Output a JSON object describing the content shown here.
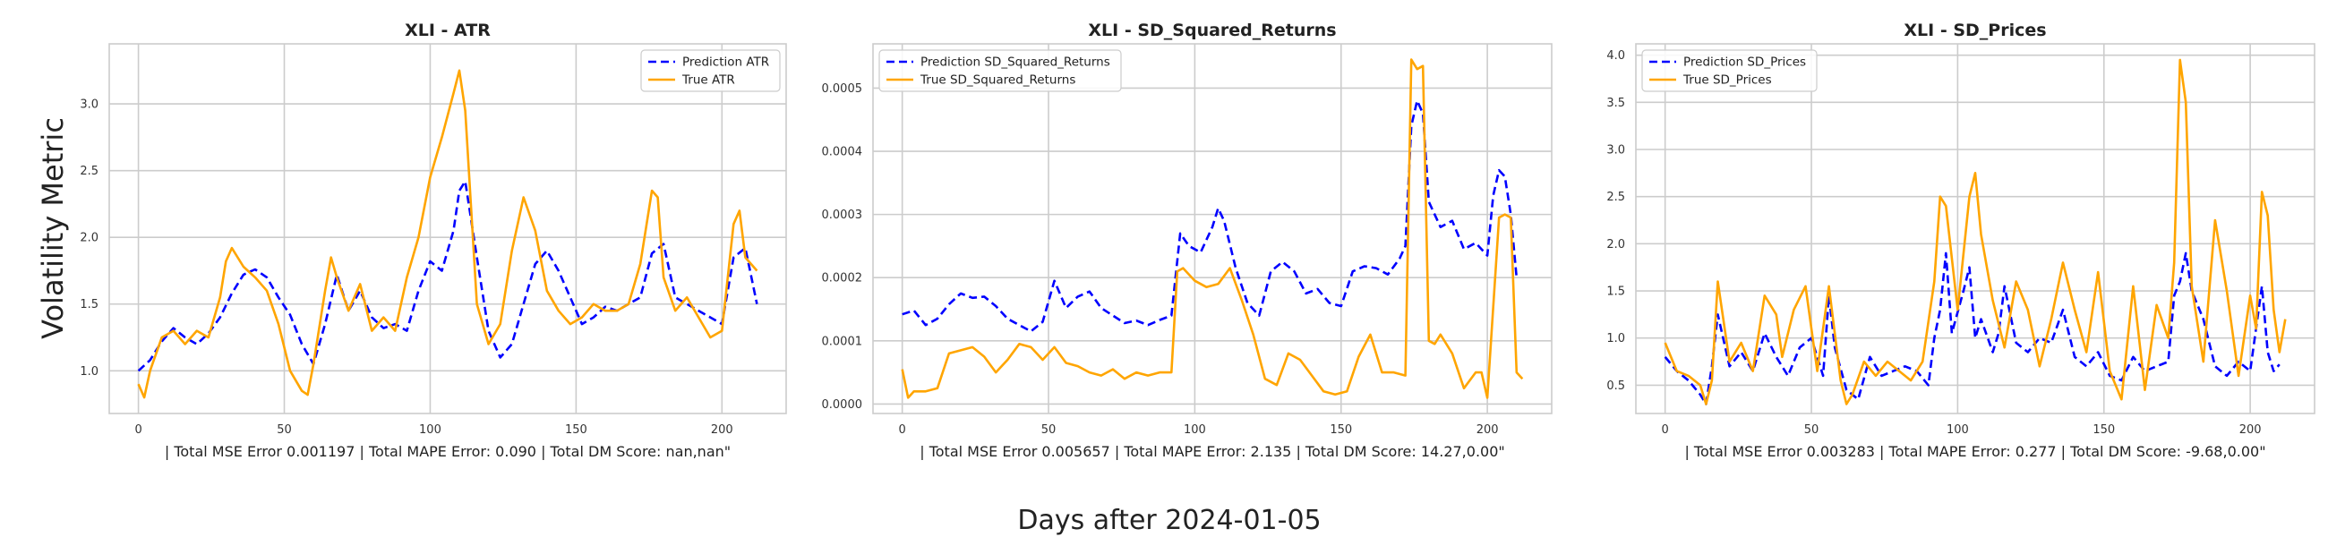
{
  "figure": {
    "ylabel": "Volatility Metric",
    "xlabel": "Days after 2024-01-05"
  },
  "chart_data": [
    {
      "type": "line",
      "title": "XLI - ATR",
      "xlabel": "| Total MSE Error 0.001197 | Total MAPE Error: 0.090 | Total DM Score: nan,nan\"",
      "xlim": [
        -10,
        222
      ],
      "ylim": [
        0.68,
        3.45
      ],
      "xticks": [
        0,
        50,
        100,
        150,
        200
      ],
      "yticks": [
        1.0,
        1.5,
        2.0,
        2.5,
        3.0
      ],
      "ytick_labels": [
        "1.0",
        "1.5",
        "2.0",
        "2.5",
        "3.0"
      ],
      "grid": true,
      "legend_position": "top-right",
      "series": [
        {
          "name": "Prediction ATR",
          "color": "#0000ff",
          "style": "dashed",
          "x": [
            0,
            4,
            8,
            12,
            16,
            20,
            24,
            28,
            32,
            36,
            40,
            44,
            48,
            52,
            56,
            60,
            64,
            68,
            72,
            76,
            80,
            84,
            88,
            92,
            96,
            100,
            104,
            108,
            110,
            112,
            116,
            120,
            124,
            128,
            132,
            136,
            140,
            144,
            148,
            152,
            156,
            160,
            164,
            168,
            172,
            176,
            180,
            184,
            188,
            192,
            196,
            200,
            204,
            208,
            212
          ],
          "y": [
            1.0,
            1.08,
            1.22,
            1.32,
            1.25,
            1.2,
            1.28,
            1.4,
            1.58,
            1.72,
            1.76,
            1.7,
            1.55,
            1.42,
            1.2,
            1.05,
            1.35,
            1.72,
            1.45,
            1.6,
            1.4,
            1.32,
            1.35,
            1.3,
            1.6,
            1.82,
            1.75,
            2.05,
            2.35,
            2.42,
            1.85,
            1.3,
            1.1,
            1.2,
            1.5,
            1.8,
            1.9,
            1.75,
            1.55,
            1.35,
            1.4,
            1.48,
            1.45,
            1.5,
            1.55,
            1.88,
            1.95,
            1.55,
            1.5,
            1.45,
            1.4,
            1.35,
            1.85,
            1.92,
            1.5
          ]
        },
        {
          "name": "True ATR",
          "color": "#ffa500",
          "style": "solid",
          "x": [
            0,
            2,
            4,
            8,
            12,
            16,
            20,
            24,
            28,
            30,
            32,
            36,
            40,
            44,
            48,
            52,
            56,
            58,
            60,
            64,
            66,
            68,
            72,
            76,
            80,
            84,
            88,
            92,
            96,
            100,
            104,
            108,
            110,
            112,
            116,
            120,
            124,
            128,
            132,
            136,
            140,
            144,
            148,
            152,
            156,
            160,
            164,
            168,
            172,
            176,
            178,
            180,
            184,
            188,
            192,
            196,
            200,
            204,
            206,
            208,
            212
          ],
          "y": [
            0.9,
            0.8,
            1.0,
            1.25,
            1.3,
            1.2,
            1.3,
            1.25,
            1.55,
            1.82,
            1.92,
            1.78,
            1.7,
            1.6,
            1.35,
            1.0,
            0.85,
            0.82,
            1.05,
            1.6,
            1.85,
            1.7,
            1.45,
            1.65,
            1.3,
            1.4,
            1.3,
            1.7,
            2.0,
            2.45,
            2.75,
            3.08,
            3.25,
            2.95,
            1.5,
            1.2,
            1.35,
            1.9,
            2.3,
            2.05,
            1.6,
            1.45,
            1.35,
            1.4,
            1.5,
            1.45,
            1.45,
            1.5,
            1.8,
            2.35,
            2.3,
            1.7,
            1.45,
            1.55,
            1.4,
            1.25,
            1.3,
            2.1,
            2.2,
            1.85,
            1.75
          ]
        }
      ]
    },
    {
      "type": "line",
      "title": "XLI - SD_Squared_Returns",
      "xlabel": "| Total MSE Error 0.005657 | Total MAPE Error: 2.135 | Total DM Score: 14.27,0.00\"",
      "xlim": [
        -10,
        222
      ],
      "ylim": [
        -1.5e-05,
        0.00057
      ],
      "xticks": [
        0,
        50,
        100,
        150,
        200
      ],
      "yticks": [
        0.0,
        0.0001,
        0.0002,
        0.0003,
        0.0004,
        0.0005
      ],
      "ytick_labels": [
        "0.0000",
        "0.0001",
        "0.0002",
        "0.0003",
        "0.0004",
        "0.0005"
      ],
      "grid": true,
      "legend_position": "top-left",
      "series": [
        {
          "name": "Prediction SD_Squared_Returns",
          "color": "#0000ff",
          "style": "dashed",
          "x": [
            0,
            4,
            8,
            12,
            16,
            20,
            24,
            28,
            32,
            36,
            40,
            44,
            48,
            52,
            56,
            60,
            64,
            68,
            72,
            76,
            80,
            84,
            88,
            92,
            95,
            98,
            102,
            106,
            108,
            110,
            114,
            118,
            122,
            126,
            130,
            134,
            138,
            142,
            146,
            150,
            154,
            158,
            162,
            166,
            170,
            172,
            174,
            176,
            178,
            180,
            184,
            188,
            192,
            196,
            200,
            202,
            204,
            206,
            208,
            210
          ],
          "y": [
            0.000142,
            0.000148,
            0.000125,
            0.000135,
            0.000158,
            0.000175,
            0.000168,
            0.00017,
            0.000155,
            0.000135,
            0.000125,
            0.000115,
            0.00013,
            0.000195,
            0.000152,
            0.00017,
            0.000178,
            0.000152,
            0.00014,
            0.000128,
            0.000132,
            0.000125,
            0.000133,
            0.00014,
            0.00027,
            0.00025,
            0.00024,
            0.00028,
            0.00031,
            0.00029,
            0.000215,
            0.00016,
            0.00014,
            0.00021,
            0.000225,
            0.00021,
            0.000175,
            0.000182,
            0.00016,
            0.000155,
            0.00021,
            0.000218,
            0.000215,
            0.000205,
            0.00023,
            0.00025,
            0.00044,
            0.00048,
            0.00046,
            0.00032,
            0.00028,
            0.00029,
            0.000245,
            0.000255,
            0.000235,
            0.00033,
            0.00037,
            0.00036,
            0.0003,
            0.0002
          ]
        },
        {
          "name": "True SD_Squared_Returns",
          "color": "#ffa500",
          "style": "solid",
          "x": [
            0,
            2,
            4,
            8,
            12,
            16,
            20,
            24,
            28,
            32,
            36,
            40,
            44,
            48,
            52,
            56,
            60,
            64,
            68,
            72,
            76,
            80,
            84,
            88,
            92,
            94,
            96,
            100,
            104,
            108,
            112,
            116,
            120,
            124,
            128,
            132,
            136,
            140,
            144,
            148,
            152,
            156,
            160,
            164,
            168,
            172,
            174,
            176,
            178,
            180,
            182,
            184,
            188,
            192,
            196,
            198,
            200,
            204,
            206,
            208,
            210,
            212
          ],
          "y": [
            5.5e-05,
            1e-05,
            2e-05,
            2e-05,
            2.5e-05,
            8e-05,
            8.5e-05,
            9e-05,
            7.5e-05,
            5e-05,
            7e-05,
            9.5e-05,
            9e-05,
            7e-05,
            9e-05,
            6.5e-05,
            6e-05,
            5e-05,
            4.5e-05,
            5.5e-05,
            4e-05,
            5e-05,
            4.5e-05,
            5e-05,
            5e-05,
            0.00021,
            0.000215,
            0.000195,
            0.000185,
            0.00019,
            0.000215,
            0.000165,
            0.00011,
            4e-05,
            3e-05,
            8e-05,
            7e-05,
            4.5e-05,
            2e-05,
            1.5e-05,
            2e-05,
            7.5e-05,
            0.00011,
            5e-05,
            5e-05,
            4.5e-05,
            0.000545,
            0.00053,
            0.000535,
            0.0001,
            9.5e-05,
            0.00011,
            8e-05,
            2.5e-05,
            5e-05,
            5e-05,
            1e-05,
            0.000295,
            0.0003,
            0.000295,
            5e-05,
            4e-05
          ]
        }
      ]
    },
    {
      "type": "line",
      "title": "XLI - SD_Prices",
      "xlabel": "| Total MSE Error 0.003283 | Total MAPE Error: 0.277 | Total DM Score: -9.68,0.00\"",
      "xlim": [
        -10,
        222
      ],
      "ylim": [
        0.2,
        4.12
      ],
      "xticks": [
        0,
        50,
        100,
        150,
        200
      ],
      "yticks": [
        0.5,
        1.0,
        1.5,
        2.0,
        2.5,
        3.0,
        3.5,
        4.0
      ],
      "ytick_labels": [
        "0.5",
        "1.0",
        "1.5",
        "2.0",
        "2.5",
        "3.0",
        "3.5",
        "4.0"
      ],
      "grid": true,
      "legend_position": "top-left",
      "series": [
        {
          "name": "Prediction SD_Prices",
          "color": "#0000ff",
          "style": "dashed",
          "x": [
            0,
            4,
            8,
            12,
            14,
            16,
            18,
            22,
            26,
            30,
            34,
            38,
            42,
            46,
            50,
            54,
            56,
            58,
            62,
            66,
            70,
            74,
            78,
            82,
            86,
            90,
            92,
            94,
            96,
            98,
            102,
            104,
            106,
            108,
            112,
            114,
            116,
            120,
            124,
            128,
            132,
            136,
            140,
            144,
            148,
            152,
            156,
            160,
            164,
            168,
            172,
            174,
            176,
            178,
            180,
            184,
            188,
            192,
            196,
            200,
            204,
            206,
            208,
            210
          ],
          "y": [
            0.8,
            0.65,
            0.55,
            0.4,
            0.3,
            0.7,
            1.25,
            0.7,
            0.85,
            0.65,
            1.05,
            0.8,
            0.6,
            0.9,
            1.0,
            0.6,
            1.45,
            0.9,
            0.45,
            0.35,
            0.8,
            0.6,
            0.65,
            0.7,
            0.65,
            0.5,
            1.0,
            1.3,
            1.9,
            1.05,
            1.5,
            1.75,
            1.0,
            1.2,
            0.85,
            1.05,
            1.55,
            0.95,
            0.85,
            1.0,
            0.95,
            1.3,
            0.8,
            0.7,
            0.85,
            0.6,
            0.55,
            0.8,
            0.65,
            0.7,
            0.75,
            1.45,
            1.6,
            1.9,
            1.5,
            1.2,
            0.7,
            0.6,
            0.75,
            0.65,
            1.55,
            0.85,
            0.65,
            0.72
          ]
        },
        {
          "name": "True SD_Prices",
          "color": "#ffa500",
          "style": "solid",
          "x": [
            0,
            4,
            8,
            12,
            14,
            16,
            18,
            22,
            26,
            30,
            34,
            38,
            40,
            44,
            48,
            52,
            56,
            60,
            62,
            64,
            68,
            72,
            76,
            80,
            84,
            88,
            92,
            94,
            96,
            100,
            104,
            106,
            108,
            112,
            116,
            120,
            124,
            128,
            132,
            136,
            140,
            144,
            148,
            152,
            156,
            160,
            164,
            168,
            172,
            174,
            176,
            178,
            180,
            184,
            188,
            192,
            196,
            200,
            202,
            204,
            206,
            208,
            210,
            212
          ],
          "y": [
            0.95,
            0.65,
            0.6,
            0.5,
            0.3,
            0.55,
            1.6,
            0.75,
            0.95,
            0.65,
            1.45,
            1.25,
            0.8,
            1.3,
            1.55,
            0.65,
            1.55,
            0.55,
            0.3,
            0.4,
            0.75,
            0.6,
            0.75,
            0.65,
            0.55,
            0.75,
            1.6,
            2.5,
            2.4,
            1.3,
            2.5,
            2.75,
            2.1,
            1.4,
            0.9,
            1.6,
            1.3,
            0.7,
            1.2,
            1.8,
            1.3,
            0.85,
            1.7,
            0.65,
            0.35,
            1.55,
            0.45,
            1.35,
            1.0,
            1.8,
            3.95,
            3.5,
            1.55,
            0.75,
            2.25,
            1.5,
            0.6,
            1.45,
            1.1,
            2.55,
            2.3,
            1.3,
            0.85,
            1.2
          ]
        }
      ]
    }
  ]
}
